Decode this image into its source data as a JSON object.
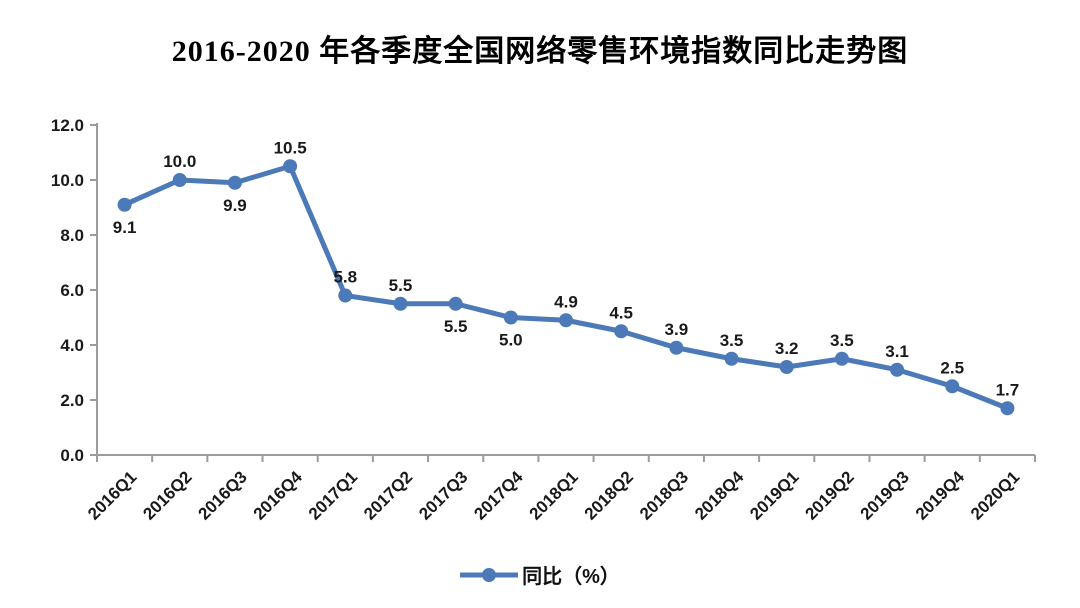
{
  "chart_data": {
    "type": "line",
    "title": "2016-2020 年各季度全国网络零售环境指数同比走势图",
    "categories": [
      "2016Q1",
      "2016Q2",
      "2016Q3",
      "2016Q4",
      "2017Q1",
      "2017Q2",
      "2017Q3",
      "2017Q4",
      "2018Q1",
      "2018Q2",
      "2018Q3",
      "2018Q4",
      "2019Q1",
      "2019Q2",
      "2019Q3",
      "2019Q4",
      "2020Q1"
    ],
    "series": [
      {
        "name": "同比（%）",
        "values": [
          9.1,
          10.0,
          9.9,
          10.5,
          5.8,
          5.5,
          5.5,
          5.0,
          4.9,
          4.5,
          3.9,
          3.5,
          3.2,
          3.5,
          3.1,
          2.5,
          1.7
        ]
      }
    ],
    "value_labels": [
      "9.1",
      "10.0",
      "9.9",
      "10.5",
      "5.8",
      "5.5",
      "5.5",
      "5.0",
      "4.9",
      "4.5",
      "3.9",
      "3.5",
      "3.2",
      "3.5",
      "3.1",
      "2.5",
      "1.7"
    ],
    "label_positions": [
      "below",
      "above",
      "below",
      "above",
      "above",
      "above",
      "below",
      "below",
      "above",
      "above",
      "above",
      "above",
      "above",
      "above",
      "above",
      "above",
      "above"
    ],
    "xlabel": "",
    "ylabel": "",
    "ylim": [
      0,
      12
    ],
    "ytick_step": 2,
    "ytick_labels": [
      "0.0",
      "2.0",
      "4.0",
      "6.0",
      "8.0",
      "10.0",
      "12.0"
    ],
    "grid": false,
    "legend_position": "bottom",
    "line_color": "#4C79B8",
    "axis_color": "#9C9C9C",
    "text_color": "#1a1a1a",
    "background_color": "#ffffff"
  }
}
